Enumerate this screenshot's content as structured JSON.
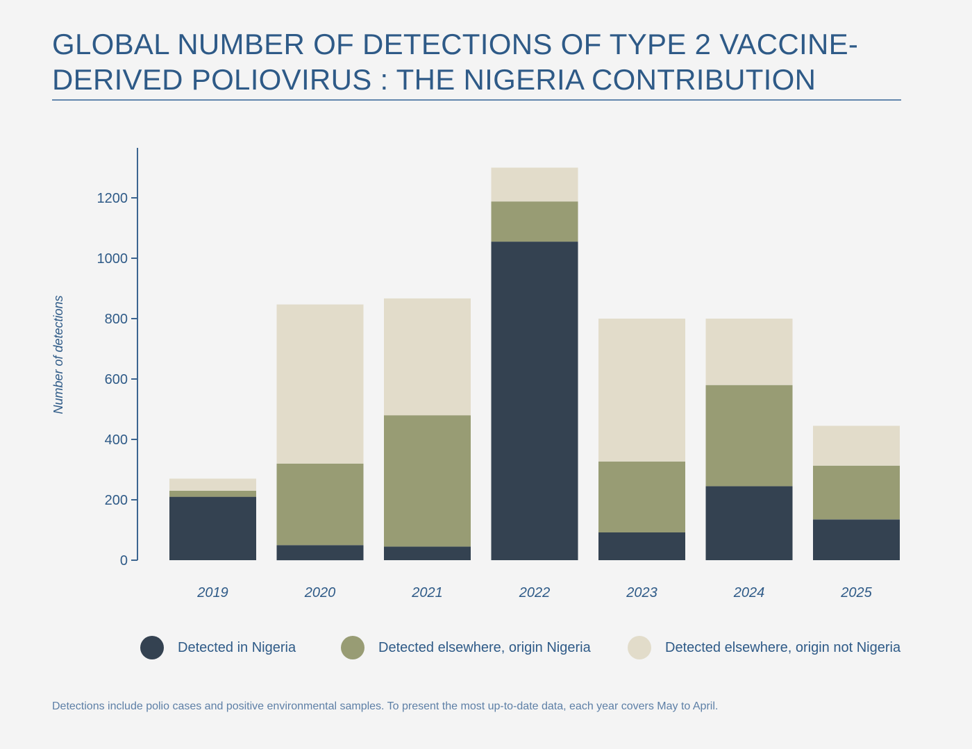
{
  "title_lines": [
    "GLOBAL NUMBER OF DETECTIONS OF TYPE 2 VACCINE-",
    "DERIVED POLIOVIRUS : THE NIGERIA CONTRIBUTION"
  ],
  "footnote": "Detections include polio cases and positive environmental samples. To present the most up-to-date data, each year covers May to April.",
  "colors": {
    "text": "#2e5a87",
    "axis": "#3c6590",
    "background": "#f4f4f4"
  },
  "chart_data": {
    "type": "bar",
    "stacked": true,
    "categories": [
      "2019",
      "2020",
      "2021",
      "2022",
      "2023",
      "2024",
      "2025"
    ],
    "series": [
      {
        "name": "Detected in Nigeria",
        "color": "#344251",
        "values": [
          210,
          50,
          45,
          1055,
          92,
          245,
          135
        ]
      },
      {
        "name": "Detected elsewhere, origin Nigeria",
        "color": "#989c74",
        "values": [
          20,
          270,
          435,
          133,
          235,
          335,
          178
        ]
      },
      {
        "name": "Detected elsewhere, origin not Nigeria",
        "color": "#e2dcca",
        "values": [
          40,
          527,
          387,
          112,
          473,
          220,
          132
        ]
      }
    ],
    "ylabel": "Number of detections",
    "xlabel": "",
    "ylim": [
      0,
      1350
    ],
    "yticks": [
      0,
      200,
      400,
      600,
      800,
      1000,
      1200
    ],
    "grid": false,
    "legend": "bottom"
  }
}
